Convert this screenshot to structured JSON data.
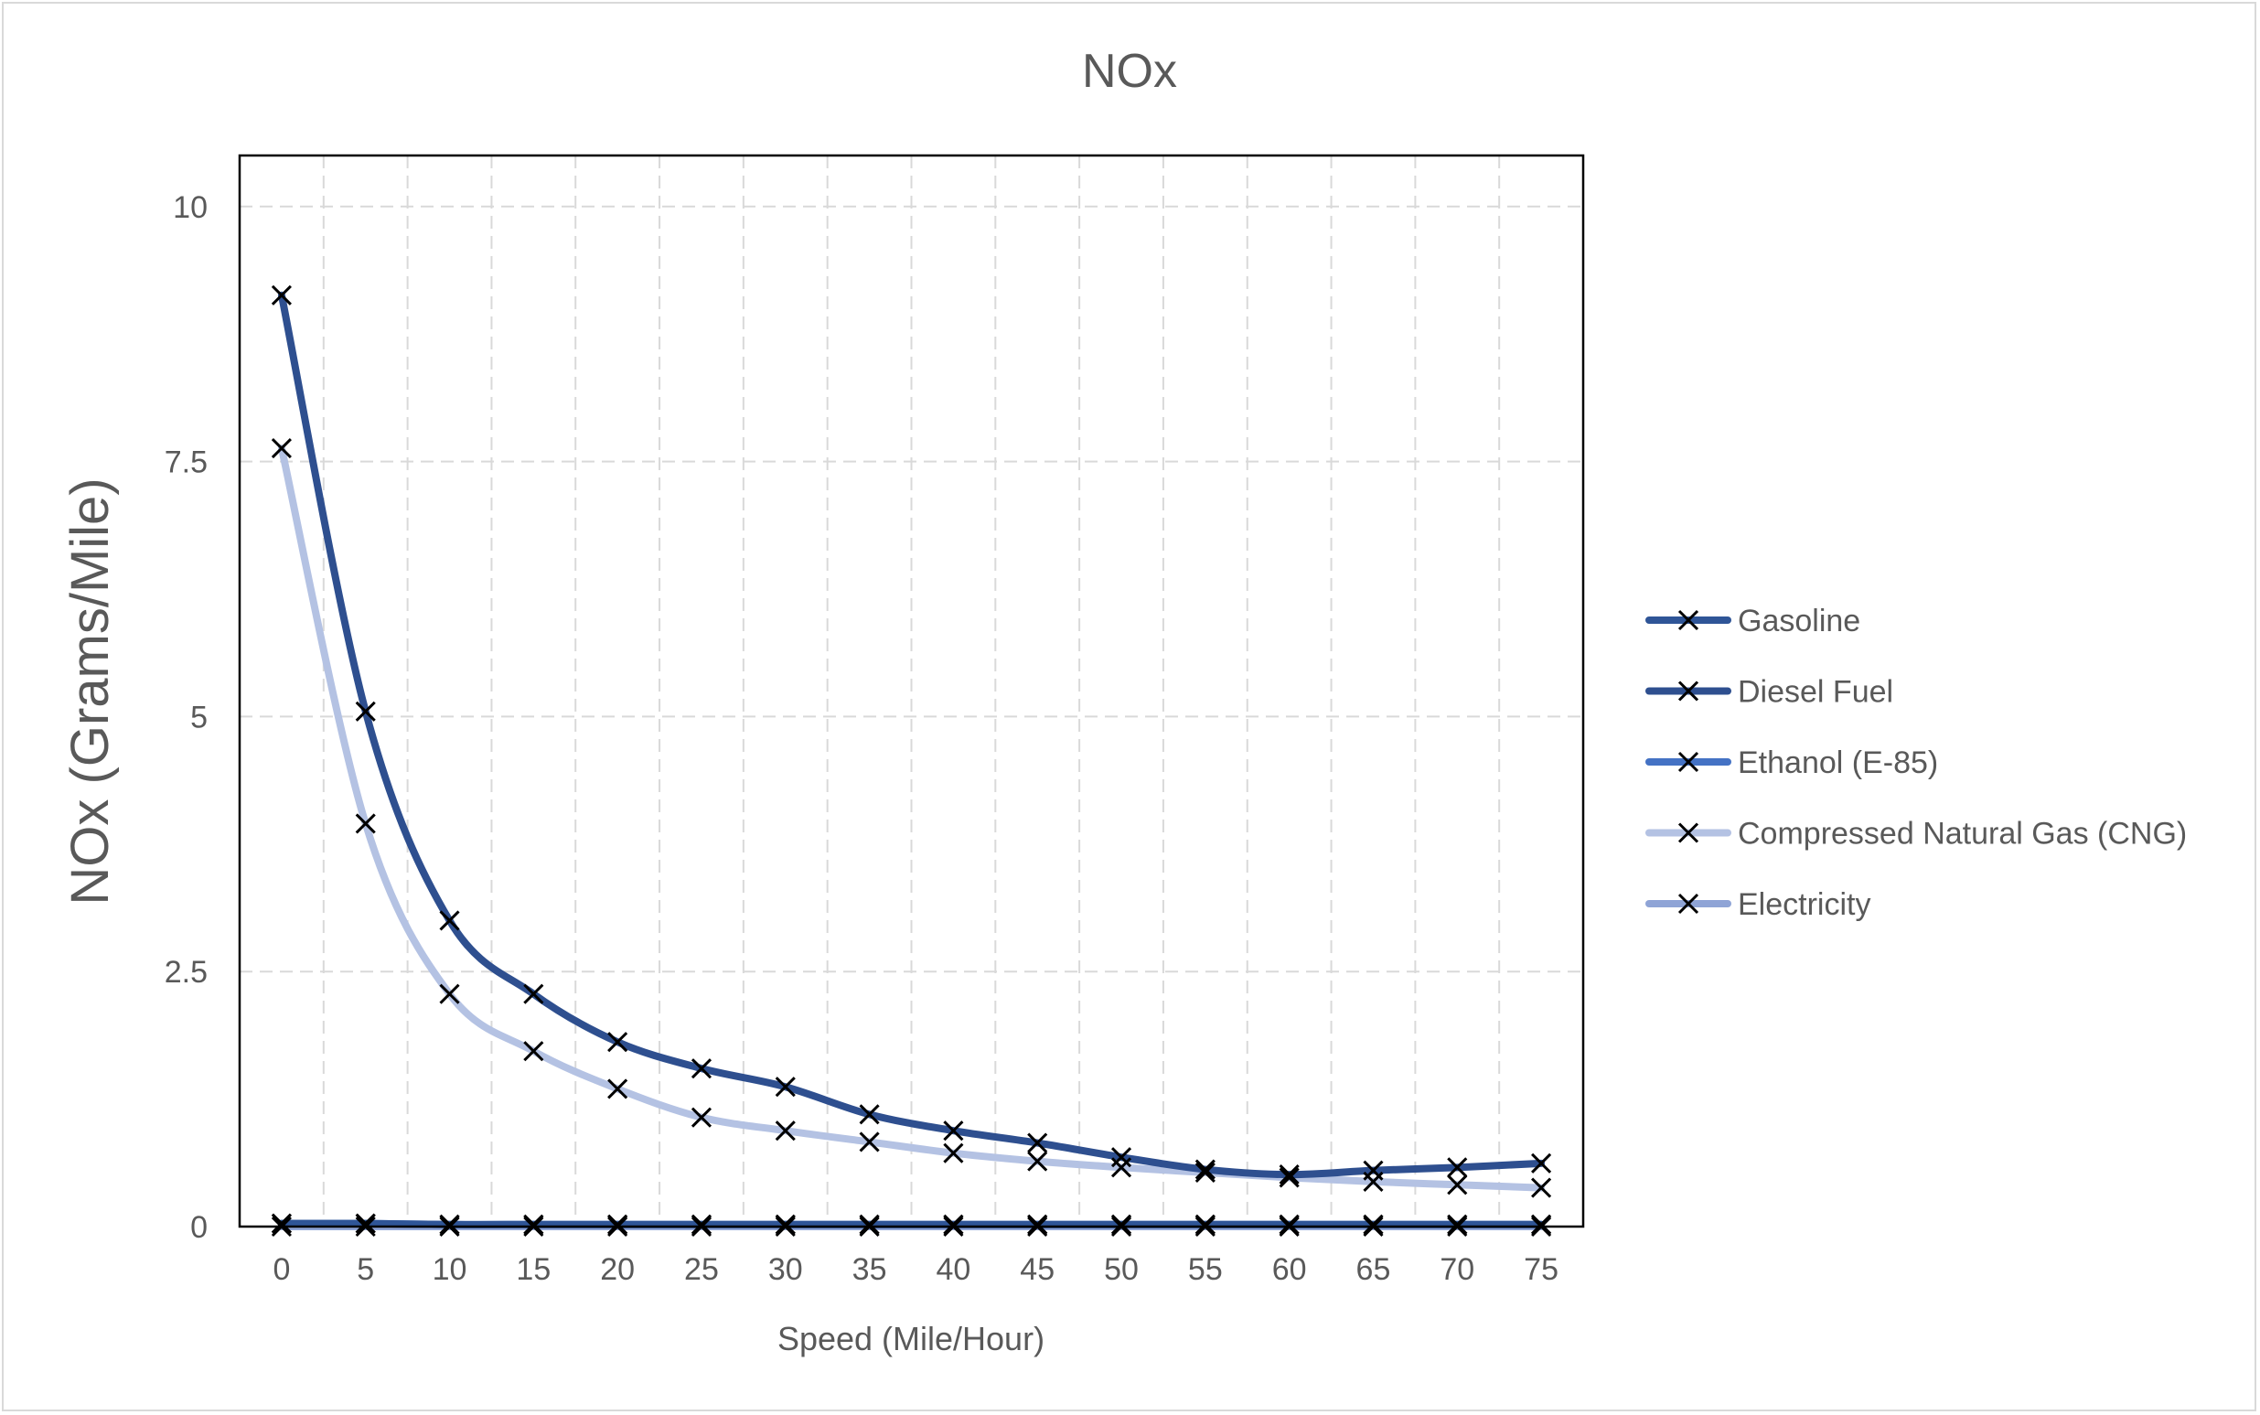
{
  "chart_data": {
    "type": "line",
    "title": "NOx",
    "xlabel": "Speed (Mile/Hour)",
    "ylabel": "NOx (Grams/Mile)",
    "x": [
      0,
      5,
      10,
      15,
      20,
      25,
      30,
      35,
      40,
      45,
      50,
      55,
      60,
      65,
      70,
      75
    ],
    "xlim": [
      -2.5,
      77.5
    ],
    "ylim": [
      0,
      10.5
    ],
    "yticks": [
      0,
      2.5,
      5,
      7.5,
      10
    ],
    "ytick_labels": [
      "0",
      "2.5",
      "5",
      "7.5",
      "10"
    ],
    "grid": true,
    "legend_position": "right",
    "marker": "x",
    "series": [
      {
        "name": "Gasoline",
        "color": "#2f5597",
        "values": [
          0.03,
          0.03,
          0.02,
          0.02,
          0.02,
          0.02,
          0.02,
          0.02,
          0.02,
          0.02,
          0.02,
          0.02,
          0.02,
          0.02,
          0.02,
          0.02
        ]
      },
      {
        "name": "Diesel Fuel",
        "color": "#2e4f8f",
        "values": [
          9.13,
          5.05,
          3.0,
          2.28,
          1.81,
          1.55,
          1.37,
          1.1,
          0.94,
          0.82,
          0.68,
          0.56,
          0.51,
          0.55,
          0.58,
          0.62
        ]
      },
      {
        "name": "Ethanol (E-85)",
        "color": "#4472c4",
        "values": [
          0.03,
          0.03,
          0.02,
          0.02,
          0.02,
          0.02,
          0.02,
          0.02,
          0.02,
          0.02,
          0.02,
          0.02,
          0.02,
          0.02,
          0.02,
          0.02
        ]
      },
      {
        "name": "Compressed Natural Gas (CNG)",
        "color": "#b4c2e3",
        "values": [
          7.63,
          3.95,
          2.28,
          1.72,
          1.35,
          1.07,
          0.94,
          0.83,
          0.72,
          0.64,
          0.58,
          0.53,
          0.48,
          0.44,
          0.41,
          0.38
        ]
      },
      {
        "name": "Electricity",
        "color": "#8fa4d6",
        "values": [
          0.0,
          0.0,
          0.0,
          0.0,
          0.0,
          0.0,
          0.0,
          0.0,
          0.0,
          0.0,
          0.0,
          0.0,
          0.0,
          0.0,
          0.0,
          0.0
        ]
      }
    ]
  }
}
